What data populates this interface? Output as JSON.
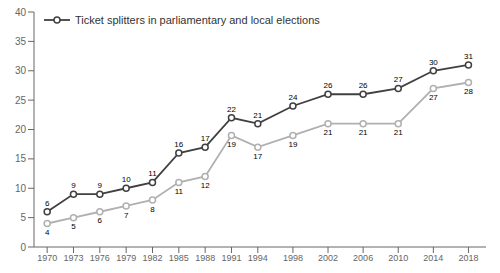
{
  "chart_data": {
    "type": "line",
    "x": [
      1970,
      1973,
      1976,
      1979,
      1982,
      1985,
      1988,
      1991,
      1994,
      1998,
      2002,
      2006,
      2010,
      2014,
      2018
    ],
    "series": [
      {
        "name": "Ticket splitters in parliamentary and local elections",
        "color": "#404040",
        "marker": "circle",
        "values": [
          6,
          9,
          9,
          10,
          11,
          16,
          17,
          22,
          21,
          24,
          26,
          26,
          27,
          30,
          31
        ]
      },
      {
        "color": "#b0b0b0",
        "marker": "circle",
        "values": [
          4,
          5,
          6,
          7,
          8,
          11,
          12,
          19,
          17,
          19,
          21,
          21,
          21,
          27,
          28
        ]
      }
    ],
    "xlim": [
      1968.5,
      2020
    ],
    "xticks": [
      1970,
      1973,
      1976,
      1979,
      1982,
      1985,
      1988,
      1991,
      1994,
      1998,
      2002,
      2006,
      2010,
      2014,
      2018
    ],
    "ylim": [
      0,
      40
    ],
    "yticks": [
      0,
      5,
      10,
      15,
      20,
      25,
      30,
      35,
      40
    ],
    "data_labels": true,
    "grid": false,
    "legend": "upper left"
  }
}
